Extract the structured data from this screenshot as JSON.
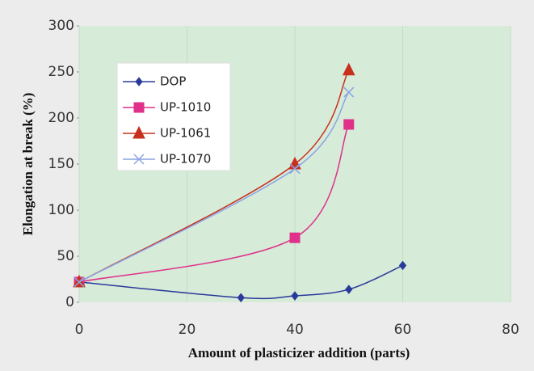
{
  "chart_data": {
    "type": "line",
    "xlabel": "Amount of plasticizer addition (parts)",
    "ylabel": "Elongation at break (%)",
    "xlim": [
      0,
      80
    ],
    "xticks": [
      0,
      20,
      40,
      60,
      80
    ],
    "ylim": [
      0,
      300
    ],
    "yticks": [
      0,
      50,
      100,
      150,
      200,
      250,
      300
    ],
    "grid": true,
    "legend": "upper left",
    "series": [
      {
        "name": "DOP",
        "color": "#2a3a9a",
        "marker": "diamond",
        "x": [
          0,
          30,
          40,
          50,
          60
        ],
        "values": [
          22,
          5,
          7,
          14,
          40
        ]
      },
      {
        "name": "UP-1010",
        "color": "#e0308a",
        "marker": "square",
        "x": [
          0,
          40,
          50
        ],
        "values": [
          22,
          70,
          193
        ]
      },
      {
        "name": "UP-1061",
        "color": "#c8301e",
        "marker": "triangle",
        "x": [
          0,
          40,
          50
        ],
        "values": [
          22,
          150,
          252
        ]
      },
      {
        "name": "UP-1070",
        "color": "#8aa4e6",
        "marker": "x",
        "x": [
          0,
          40,
          50
        ],
        "values": [
          22,
          145,
          228
        ]
      }
    ]
  }
}
